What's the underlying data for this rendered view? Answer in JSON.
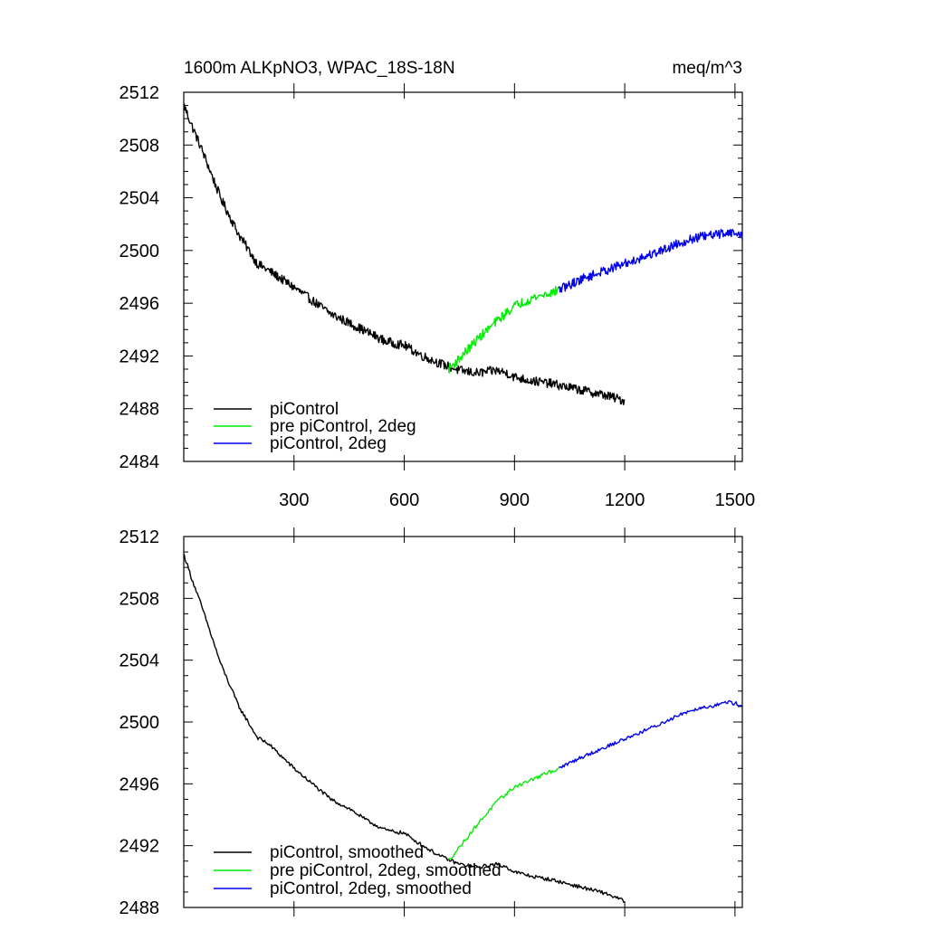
{
  "chart_data": [
    {
      "type": "line",
      "title_left": "1600m ALKpNO3, WPAC_18S-18N",
      "title_right": "meq/m^3",
      "xlim": [
        0,
        1520
      ],
      "ylim": [
        2484,
        2512
      ],
      "xticks": [
        {
          "value": 300,
          "label": "300"
        },
        {
          "value": 600,
          "label": "600"
        },
        {
          "value": 900,
          "label": "900"
        },
        {
          "value": 1200,
          "label": "1200"
        },
        {
          "value": 1500,
          "label": "1500"
        }
      ],
      "yticks": [
        {
          "value": 2512,
          "label": "2512"
        },
        {
          "value": 2508,
          "label": "2508"
        },
        {
          "value": 2504,
          "label": "2504"
        },
        {
          "value": 2500,
          "label": "2500"
        },
        {
          "value": 2496,
          "label": "2496"
        },
        {
          "value": 2492,
          "label": "2492"
        },
        {
          "value": 2488,
          "label": "2488"
        },
        {
          "value": 2484,
          "label": "2484"
        }
      ],
      "noise": 0.35,
      "series": [
        {
          "name": "piControl",
          "color": "#000000",
          "x": [
            1,
            20,
            50,
            100,
            150,
            200,
            230,
            300,
            350,
            400,
            450,
            500,
            550,
            600,
            650,
            700,
            750,
            800,
            850,
            880,
            900,
            950,
            1000,
            1050,
            1100,
            1150,
            1200
          ],
          "y": [
            2511.0,
            2509.6,
            2507.6,
            2504.0,
            2501.2,
            2499.0,
            2498.5,
            2497.2,
            2496.2,
            2495.2,
            2494.5,
            2493.8,
            2493.1,
            2492.8,
            2492.0,
            2491.4,
            2490.9,
            2490.7,
            2490.9,
            2490.7,
            2490.4,
            2490.1,
            2489.9,
            2489.6,
            2489.3,
            2489.0,
            2488.6
          ]
        },
        {
          "name": "pre piControl, 2deg",
          "color": "#00ee00",
          "x": [
            720,
            750,
            800,
            850,
            900,
            950,
            1000,
            1020
          ],
          "y": [
            2491.0,
            2491.8,
            2493.3,
            2494.6,
            2495.8,
            2496.4,
            2496.8,
            2497.0
          ]
        },
        {
          "name": "piControl, 2deg",
          "color": "#0000ee",
          "x": [
            1020,
            1080,
            1150,
            1200,
            1250,
            1300,
            1350,
            1400,
            1450,
            1480,
            1500,
            1520
          ],
          "y": [
            2497.0,
            2497.8,
            2498.5,
            2499.0,
            2499.5,
            2500.0,
            2500.6,
            2501.0,
            2501.2,
            2501.4,
            2501.3,
            2501.1
          ]
        }
      ]
    },
    {
      "type": "line",
      "xlim": [
        0,
        1520
      ],
      "ylim": [
        2488,
        2512
      ],
      "xticks": [
        {
          "value": 300,
          "label": ""
        },
        {
          "value": 600,
          "label": ""
        },
        {
          "value": 900,
          "label": ""
        },
        {
          "value": 1200,
          "label": ""
        },
        {
          "value": 1500,
          "label": ""
        }
      ],
      "yticks": [
        {
          "value": 2512,
          "label": "2512"
        },
        {
          "value": 2508,
          "label": "2508"
        },
        {
          "value": 2504,
          "label": "2504"
        },
        {
          "value": 2500,
          "label": "2500"
        },
        {
          "value": 2496,
          "label": "2496"
        },
        {
          "value": 2492,
          "label": "2492"
        },
        {
          "value": 2488,
          "label": "2488"
        }
      ],
      "noise": 0.12,
      "series": [
        {
          "name": "piControl, smoothed",
          "color": "#000000",
          "x": [
            1,
            20,
            50,
            100,
            150,
            200,
            230,
            300,
            350,
            400,
            450,
            500,
            550,
            600,
            650,
            700,
            750,
            800,
            850,
            880,
            900,
            950,
            1000,
            1050,
            1100,
            1150,
            1200
          ],
          "y": [
            2510.8,
            2509.4,
            2507.4,
            2503.8,
            2501.0,
            2499.0,
            2498.6,
            2497.0,
            2496.0,
            2495.0,
            2494.4,
            2493.6,
            2493.0,
            2492.8,
            2492.0,
            2491.3,
            2490.8,
            2490.6,
            2490.8,
            2490.6,
            2490.3,
            2490.0,
            2489.8,
            2489.5,
            2489.2,
            2488.9,
            2488.4
          ]
        },
        {
          "name": "pre piControl, 2deg, smoothed",
          "color": "#00ee00",
          "x": [
            720,
            750,
            800,
            850,
            900,
            950,
            1000,
            1020
          ],
          "y": [
            2491.0,
            2491.9,
            2493.4,
            2494.8,
            2495.8,
            2496.3,
            2496.8,
            2497.0
          ]
        },
        {
          "name": "piControl, 2deg, smoothed",
          "color": "#0000ee",
          "x": [
            1020,
            1080,
            1150,
            1200,
            1250,
            1300,
            1350,
            1400,
            1450,
            1480,
            1500,
            1520
          ],
          "y": [
            2497.0,
            2497.7,
            2498.4,
            2498.9,
            2499.4,
            2499.9,
            2500.5,
            2500.9,
            2501.1,
            2501.3,
            2501.2,
            2501.1
          ]
        }
      ]
    }
  ]
}
